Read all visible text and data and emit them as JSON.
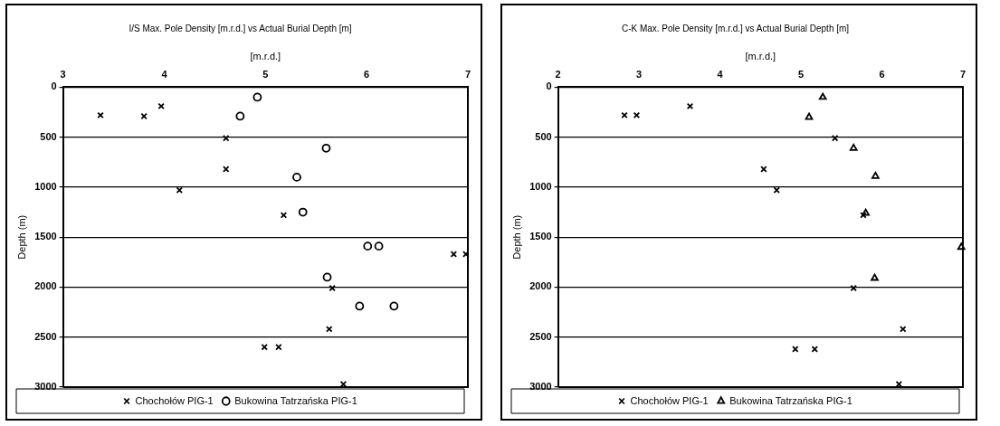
{
  "chart_data": [
    {
      "type": "scatter",
      "title": "I/S Max. Pole Density [m.r.d.] vs Actual Burial Depth [m]",
      "xlabel": "[m.r.d.]",
      "ylabel": "Depth (m)",
      "xlim": [
        3,
        7
      ],
      "xticks": [
        3,
        4,
        5,
        6,
        7
      ],
      "ylim": [
        3000,
        0
      ],
      "yticks": [
        0,
        500,
        1000,
        1500,
        2000,
        2500,
        3000
      ],
      "grid": "y",
      "legend": "bottom",
      "series": [
        {
          "name": "Chochołów PIG-1",
          "color": "#000000",
          "marker": "cross",
          "x": [
            3.37,
            3.8,
            3.97,
            4.61,
            4.61,
            4.15,
            5.18,
            6.86,
            6.98,
            5.66,
            5.63,
            4.99,
            5.13,
            5.77
          ],
          "values": [
            280,
            290,
            190,
            510,
            820,
            1030,
            1280,
            1670,
            1670,
            2010,
            2420,
            2600,
            2600,
            2970
          ]
        },
        {
          "name": "Bukowina Tatrzańska PIG-1",
          "color": "#000000",
          "marker": "circle",
          "x": [
            4.92,
            4.75,
            5.6,
            5.31,
            5.37,
            6.01,
            6.12,
            5.61,
            5.93,
            6.27
          ],
          "values": [
            100,
            290,
            610,
            900,
            1250,
            1590,
            1590,
            1900,
            2190,
            2190
          ]
        }
      ]
    },
    {
      "type": "scatter",
      "title": "C-K Max. Pole Density [m.r.d.] vs Actual Burial Depth [m]",
      "xlabel": "[m.r.d.]",
      "ylabel": "Depth (m)",
      "xlim": [
        2,
        7
      ],
      "xticks": [
        2,
        3,
        4,
        5,
        6,
        7
      ],
      "ylim": [
        3000,
        0
      ],
      "yticks": [
        0,
        500,
        1000,
        1500,
        2000,
        2500,
        3000
      ],
      "grid": "y",
      "legend": "bottom",
      "series": [
        {
          "name": "Chochołów PIG-1",
          "color": "#000000",
          "marker": "cross",
          "x": [
            2.82,
            2.97,
            3.63,
            5.42,
            4.54,
            4.7,
            5.77,
            5.65,
            6.26,
            4.93,
            5.17,
            6.21
          ],
          "values": [
            280,
            280,
            190,
            510,
            820,
            1030,
            1280,
            2010,
            2420,
            2620,
            2620,
            2970
          ]
        },
        {
          "name": "Bukowina Tatrzańska PIG-1",
          "color": "#000000",
          "marker": "triangle",
          "x": [
            5.27,
            5.1,
            5.65,
            5.92,
            5.8,
            6.98,
            5.91
          ],
          "values": [
            100,
            300,
            610,
            890,
            1260,
            1600,
            1910
          ]
        }
      ]
    }
  ]
}
